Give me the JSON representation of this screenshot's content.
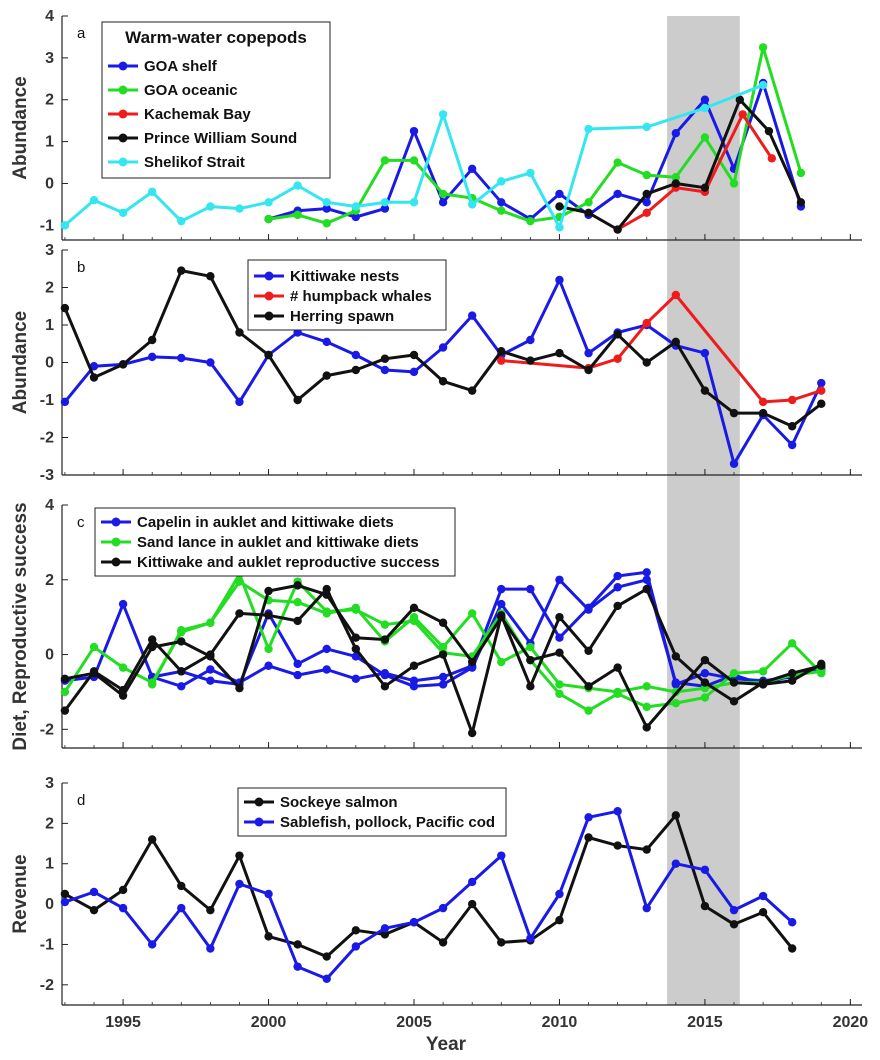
{
  "figure": {
    "xlabel": "Year",
    "xticks": [
      1995,
      2000,
      2005,
      2010,
      2015,
      2020
    ],
    "xlim": [
      1992.9,
      2020.4
    ],
    "shade": [
      2013.7,
      2016.2
    ],
    "colors": {
      "blue": "#1a1ae6",
      "green": "#22dd22",
      "red": "#ee1c1c",
      "black": "#111111",
      "cyan": "#33e6f0",
      "shade": "#cccccc"
    }
  },
  "chart_data": [
    {
      "type": "line",
      "panel_label": "a",
      "ylabel": "Abundance",
      "ylim": [
        -1.35,
        4
      ],
      "yticks": [
        -1,
        0,
        1,
        2,
        3,
        4
      ],
      "legend_title": "Warm-water copepods",
      "series": [
        {
          "name": "GOA shelf",
          "color": "blue",
          "x": [
            2000,
            2001,
            2002,
            2003,
            2004,
            2005,
            2006,
            2007,
            2008,
            2009,
            2010,
            2011,
            2012,
            2013,
            2014,
            2015,
            2016,
            2017,
            2018.3
          ],
          "y": [
            -0.85,
            -0.65,
            -0.6,
            -0.8,
            -0.6,
            1.25,
            -0.45,
            0.35,
            -0.45,
            -0.85,
            -0.25,
            -0.75,
            -0.25,
            -0.45,
            1.2,
            2.0,
            0.35,
            2.4,
            -0.55
          ]
        },
        {
          "name": "GOA oceanic",
          "color": "green",
          "x": [
            2000,
            2001,
            2002,
            2003,
            2004,
            2005,
            2006,
            2007,
            2008,
            2009,
            2010,
            2011,
            2012,
            2013,
            2014,
            2015,
            2016,
            2017,
            2018.3
          ],
          "y": [
            -0.85,
            -0.75,
            -0.95,
            -0.65,
            0.55,
            0.55,
            -0.25,
            -0.35,
            -0.65,
            -0.9,
            -0.8,
            -0.45,
            0.5,
            0.2,
            0.15,
            1.1,
            0.0,
            3.25,
            0.25
          ]
        },
        {
          "name": "Kachemak Bay",
          "color": "red",
          "x": [
            2012,
            2013,
            2014,
            2015,
            2016.3,
            2017.3
          ],
          "y": [
            -1.1,
            -0.7,
            -0.1,
            -0.2,
            1.65,
            0.6
          ]
        },
        {
          "name": "Prince William Sound",
          "color": "black",
          "x": [
            2010,
            2011,
            2012,
            2013,
            2014,
            2015,
            2016.2,
            2017.2,
            2018.3
          ],
          "y": [
            -0.55,
            -0.7,
            -1.1,
            -0.25,
            0.0,
            -0.1,
            2.0,
            1.25,
            -0.45
          ]
        },
        {
          "name": "Shelikof Strait",
          "color": "cyan",
          "x": [
            1993,
            1994,
            1995,
            1996,
            1997,
            1998,
            1999,
            2000,
            2001,
            2002,
            2003,
            2004,
            2005,
            2006,
            2007,
            2008,
            2009,
            2010,
            2011,
            2013,
            2015,
            2017
          ],
          "y": [
            -1.0,
            -0.4,
            -0.7,
            -0.2,
            -0.9,
            -0.55,
            -0.6,
            -0.45,
            -0.05,
            -0.45,
            -0.55,
            -0.45,
            -0.45,
            1.65,
            -0.5,
            0.05,
            0.25,
            -1.05,
            1.3,
            1.35,
            1.8,
            2.35
          ]
        }
      ]
    },
    {
      "type": "line",
      "panel_label": "b",
      "ylabel": "Abundance",
      "ylim": [
        -3,
        3
      ],
      "yticks": [
        -3,
        -2,
        -1,
        0,
        1,
        2,
        3
      ],
      "series": [
        {
          "name": "Kittiwake nests",
          "color": "blue",
          "x": [
            1993,
            1994,
            1995,
            1996,
            1997,
            1998,
            1999,
            2000,
            2001,
            2002,
            2003,
            2004,
            2005,
            2006,
            2007,
            2008,
            2009,
            2010,
            2011,
            2012,
            2013,
            2014,
            2015,
            2016,
            2017,
            2018,
            2019
          ],
          "y": [
            -1.05,
            -0.1,
            -0.05,
            0.15,
            0.12,
            0.0,
            -1.05,
            0.2,
            0.8,
            0.55,
            0.2,
            -0.2,
            -0.25,
            0.4,
            1.25,
            0.2,
            0.6,
            2.2,
            0.25,
            0.8,
            1.0,
            0.45,
            0.25,
            -2.7,
            -1.4,
            -2.2,
            -0.55
          ]
        },
        {
          "name": "# humpback whales",
          "color": "red",
          "x": [
            2008,
            2011,
            2012,
            2013,
            2014,
            2017,
            2018,
            2019
          ],
          "y": [
            0.05,
            -0.15,
            0.1,
            1.05,
            1.8,
            -1.05,
            -1.0,
            -0.75
          ]
        },
        {
          "name": "Herring spawn",
          "color": "black",
          "x": [
            1993,
            1994,
            1995,
            1996,
            1997,
            1998,
            1999,
            2000,
            2001,
            2002,
            2003,
            2004,
            2005,
            2006,
            2007,
            2008,
            2009,
            2010,
            2011,
            2012,
            2013,
            2014,
            2015,
            2016,
            2017,
            2018,
            2019
          ],
          "y": [
            1.45,
            -0.4,
            -0.05,
            0.6,
            2.45,
            2.3,
            0.8,
            0.2,
            -1.0,
            -0.35,
            -0.2,
            0.1,
            0.2,
            -0.5,
            -0.75,
            0.3,
            0.05,
            0.25,
            -0.2,
            0.75,
            0.0,
            0.55,
            -0.75,
            -1.35,
            -1.35,
            -1.7,
            -1.1
          ]
        }
      ]
    },
    {
      "type": "line",
      "panel_label": "c",
      "ylabel": "Diet, Reproductive success",
      "ylim": [
        -2.5,
        4
      ],
      "yticks": [
        -2,
        0,
        2,
        4
      ],
      "series": [
        {
          "name": "Capelin in auklet and kittiwake diets",
          "color": "blue",
          "x": [
            1993,
            1994,
            1995,
            1996,
            1997,
            1998,
            1999,
            2000,
            2001,
            2002,
            2003,
            2004,
            2005,
            2006,
            2007,
            2008,
            2009,
            2010,
            2011,
            2012,
            2013,
            2014,
            2015,
            2016,
            2017,
            2018,
            2019
          ],
          "y": [
            -0.7,
            -0.6,
            1.35,
            -0.6,
            -0.85,
            -0.4,
            -0.75,
            -0.3,
            -0.55,
            -0.4,
            -0.65,
            -0.5,
            -0.7,
            -0.6,
            -0.3,
            1.75,
            1.75,
            0.45,
            1.25,
            2.1,
            2.2,
            -0.8,
            -0.5,
            -0.65,
            -0.7,
            -0.6,
            -0.35
          ]
        },
        {
          "name": "Capelin in auklet and kittiwake diets",
          "color": "blue",
          "x": [
            1996,
            1997,
            1998,
            1999,
            2000,
            2001,
            2002,
            2003,
            2004,
            2005,
            2006,
            2007,
            2008,
            2009,
            2010,
            2011,
            2012,
            2013,
            2014,
            2015,
            2016,
            2017,
            2018,
            2019
          ],
          "y": [
            -0.6,
            -0.45,
            -0.7,
            -0.8,
            1.1,
            -0.25,
            0.15,
            -0.05,
            -0.55,
            -0.85,
            -0.8,
            -0.35,
            1.35,
            0.3,
            2.0,
            1.2,
            1.8,
            2.0,
            -0.75,
            -0.85,
            -0.55,
            -0.8,
            -0.55,
            -0.4
          ]
        },
        {
          "name": "Sand lance in auklet and kittiwake diets",
          "color": "green",
          "x": [
            1993,
            1994,
            1995,
            1996,
            1997,
            1998,
            1999,
            2000,
            2001,
            2002,
            2003,
            2004,
            2005,
            2006,
            2007,
            2008,
            2009,
            2010,
            2011,
            2012,
            2013,
            2014,
            2015,
            2016,
            2017,
            2018,
            2019
          ],
          "y": [
            -1.0,
            0.2,
            -0.35,
            -0.75,
            0.6,
            0.85,
            2.15,
            0.15,
            1.95,
            1.15,
            1.2,
            0.8,
            0.9,
            0.05,
            -0.05,
            1.1,
            -0.15,
            -1.05,
            -1.5,
            -1.05,
            -1.4,
            -1.3,
            -1.15,
            -0.5,
            -0.45,
            0.3,
            -0.5
          ]
        },
        {
          "name": "Sand lance in auklet and kittiwake diets",
          "color": "green",
          "x": [
            1996,
            1997,
            1998,
            1999,
            2000,
            2001,
            2002,
            2003,
            2004,
            2005,
            2006,
            2007,
            2008,
            2009,
            2010,
            2011,
            2012,
            2013,
            2014,
            2015,
            2016,
            2017,
            2018,
            2019
          ],
          "y": [
            -0.8,
            0.65,
            0.85,
            1.95,
            1.45,
            1.4,
            1.1,
            1.25,
            0.35,
            1.0,
            0.2,
            1.1,
            -0.2,
            0.2,
            -0.8,
            -0.9,
            -1.0,
            -0.85,
            -1.0,
            -0.9,
            -0.75,
            -0.75,
            -0.55,
            -0.45
          ]
        },
        {
          "name": "Kittiwake and auklet reproductive success",
          "color": "black",
          "x": [
            1993,
            1994,
            1995,
            1996,
            1997,
            1998,
            1999,
            2000,
            2001,
            2002,
            2003,
            2004,
            2005,
            2006,
            2007,
            2008,
            2009,
            2010,
            2011,
            2012,
            2013,
            2014,
            2015,
            2016,
            2017,
            2018,
            2019
          ],
          "y": [
            -1.5,
            -0.45,
            -0.95,
            0.4,
            -0.45,
            0.0,
            1.1,
            1.05,
            0.9,
            1.75,
            0.15,
            -0.85,
            -0.3,
            0.0,
            -2.1,
            1.05,
            -0.85,
            1.0,
            0.1,
            1.3,
            1.75,
            -0.05,
            -0.75,
            -1.25,
            -0.75,
            -0.5,
            -0.3
          ]
        },
        {
          "name": "Kittiwake and auklet reproductive success",
          "color": "black",
          "x": [
            1993,
            1994,
            1995,
            1996,
            1997,
            1998,
            1999,
            2000,
            2001,
            2002,
            2003,
            2004,
            2005,
            2006,
            2007,
            2008,
            2009,
            2010,
            2011,
            2012,
            2013,
            2015,
            2016,
            2017,
            2018,
            2019
          ],
          "y": [
            -0.65,
            -0.5,
            -1.1,
            0.2,
            0.35,
            -0.05,
            -0.9,
            1.7,
            1.85,
            1.6,
            0.45,
            0.4,
            1.25,
            0.85,
            -0.2,
            1.0,
            -0.15,
            0.05,
            -0.85,
            -0.35,
            -1.95,
            -0.15,
            -0.75,
            -0.8,
            -0.7,
            -0.25
          ]
        }
      ]
    },
    {
      "type": "line",
      "panel_label": "d",
      "ylabel": "Revenue",
      "ylim": [
        -2.5,
        3
      ],
      "yticks": [
        -2,
        -1,
        0,
        1,
        2,
        3
      ],
      "series": [
        {
          "name": "Sockeye salmon",
          "color": "black",
          "x": [
            1993,
            1994,
            1995,
            1996,
            1997,
            1998,
            1999,
            2000,
            2001,
            2002,
            2003,
            2004,
            2005,
            2006,
            2007,
            2008,
            2009,
            2010,
            2011,
            2012,
            2013,
            2014,
            2015,
            2016,
            2017,
            2018
          ],
          "y": [
            0.25,
            -0.15,
            0.35,
            1.6,
            0.45,
            -0.15,
            1.2,
            -0.8,
            -1.0,
            -1.3,
            -0.65,
            -0.75,
            -0.45,
            -0.95,
            0.0,
            -0.95,
            -0.9,
            -0.4,
            1.65,
            1.45,
            1.35,
            2.2,
            -0.05,
            -0.5,
            -0.2,
            -1.1
          ]
        },
        {
          "name": "Sablefish, pollock, Pacific cod",
          "color": "blue",
          "x": [
            1993,
            1994,
            1995,
            1996,
            1997,
            1998,
            1999,
            2000,
            2001,
            2002,
            2003,
            2004,
            2005,
            2006,
            2007,
            2008,
            2009,
            2010,
            2011,
            2012,
            2013,
            2014,
            2015,
            2016,
            2017,
            2018
          ],
          "y": [
            0.05,
            0.3,
            -0.1,
            -1.0,
            -0.1,
            -1.1,
            0.5,
            0.25,
            -1.55,
            -1.85,
            -1.05,
            -0.6,
            -0.45,
            -0.1,
            0.55,
            1.2,
            -0.85,
            0.25,
            2.15,
            2.3,
            -0.1,
            1.0,
            0.85,
            -0.15,
            0.2,
            -0.45
          ]
        }
      ]
    }
  ]
}
